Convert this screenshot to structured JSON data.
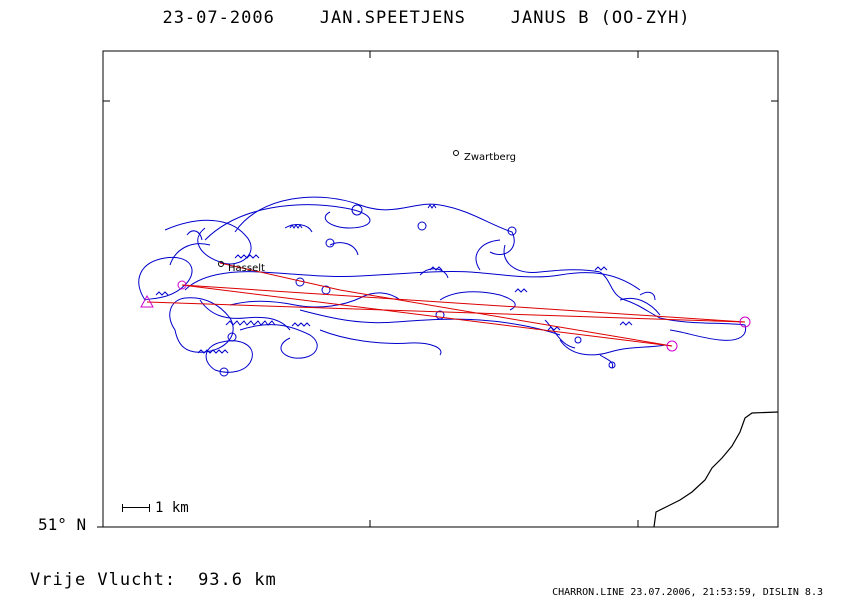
{
  "header": {
    "date": "23-07-2006",
    "pilot": "JAN.SPEETJENS",
    "glider": "JANUS B (OO-ZYH)"
  },
  "map": {
    "latitude_label": "51° N",
    "scale_label": "1 km",
    "places": [
      {
        "name": "Zwartberg"
      },
      {
        "name": "Hasselt"
      }
    ],
    "colors": {
      "track": "#0000cc",
      "task": "#dd0000",
      "turnpoint": "#cc00cc",
      "border": "#000000"
    }
  },
  "stats": {
    "label": "Vrije Vlucht:",
    "value": "93.6 km"
  },
  "footer": {
    "credit": "CHARRON.LINE 23.07.2006, 21:53:59, DISLIN 8.3"
  }
}
